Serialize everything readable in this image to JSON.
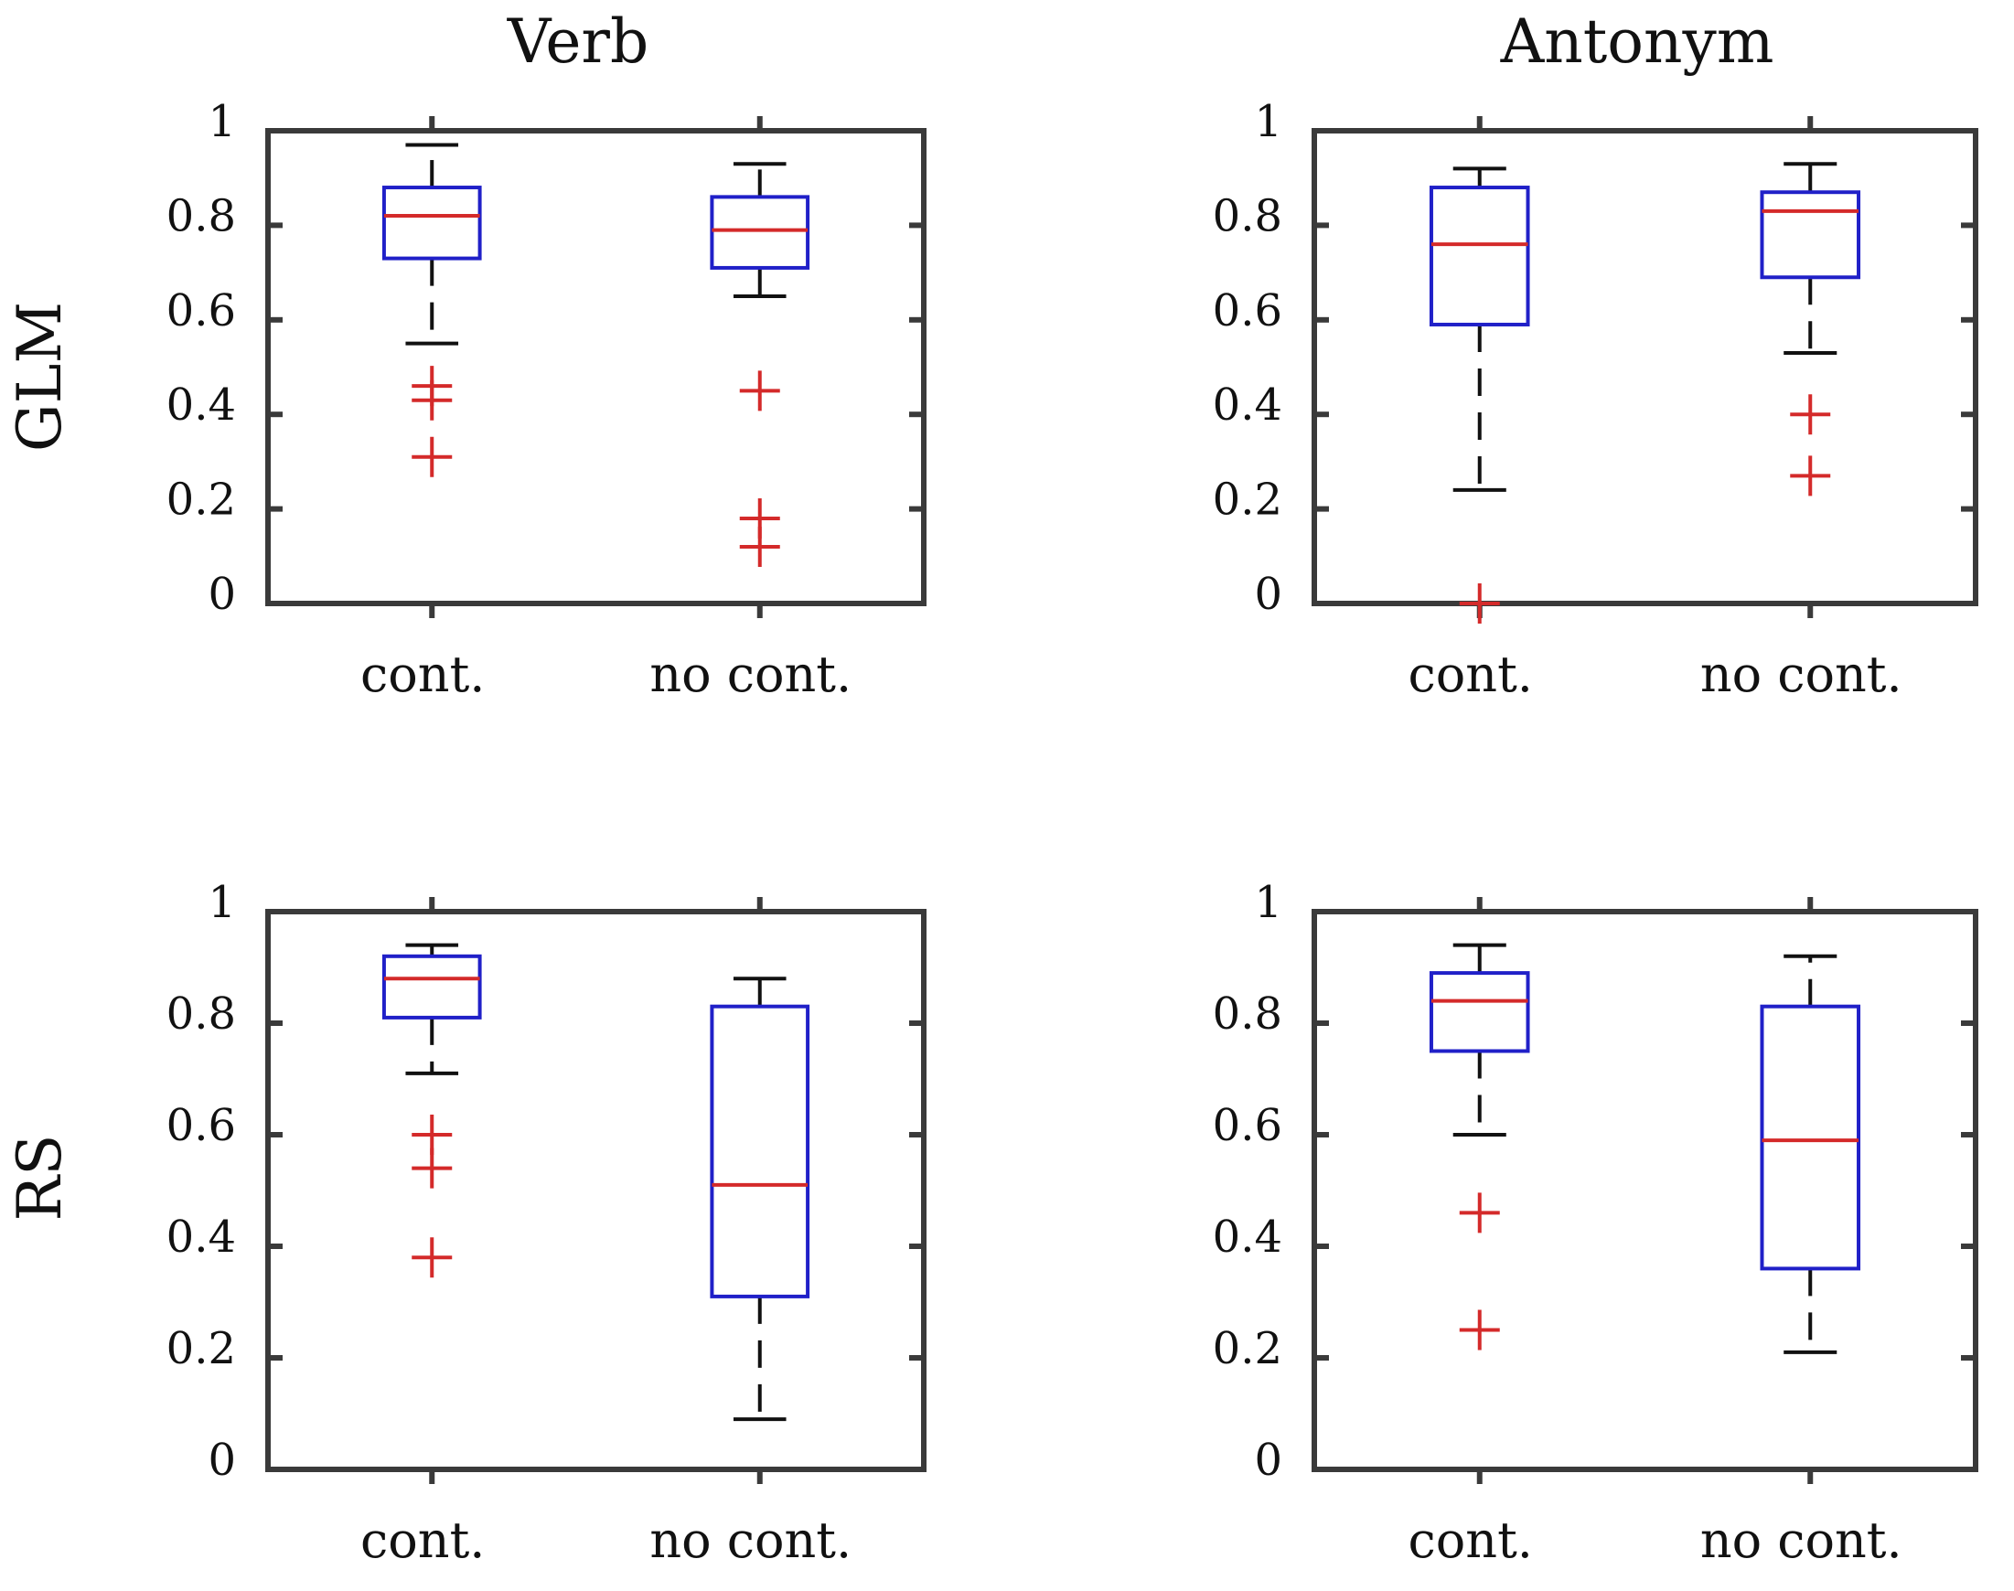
{
  "figure": {
    "col_titles": [
      "Verb",
      "Antonym"
    ],
    "row_labels": [
      "GLM",
      "RS"
    ]
  },
  "chart_data": [
    {
      "type": "box",
      "row": "GLM",
      "column": "Verb",
      "title": "",
      "xlabel": "",
      "ylabel": "",
      "ylim": [
        0,
        1
      ],
      "yticks": [
        "0",
        "0.2",
        "0.4",
        "0.6",
        "0.8",
        "1"
      ],
      "categories": [
        "cont.",
        "no cont."
      ],
      "boxes": [
        {
          "category": "cont.",
          "whisker_low": 0.55,
          "q1": 0.73,
          "median": 0.82,
          "q3": 0.88,
          "whisker_high": 0.97,
          "outliers": [
            0.46,
            0.43,
            0.31
          ]
        },
        {
          "category": "no cont.",
          "whisker_low": 0.65,
          "q1": 0.71,
          "median": 0.79,
          "q3": 0.86,
          "whisker_high": 0.93,
          "outliers": [
            0.45,
            0.18,
            0.12
          ]
        }
      ]
    },
    {
      "type": "box",
      "row": "GLM",
      "column": "Antonym",
      "title": "",
      "xlabel": "",
      "ylabel": "",
      "ylim": [
        0,
        1
      ],
      "yticks": [
        "0",
        "0.2",
        "0.4",
        "0.6",
        "0.8",
        "1"
      ],
      "categories": [
        "cont.",
        "no cont."
      ],
      "boxes": [
        {
          "category": "cont.",
          "whisker_low": 0.24,
          "q1": 0.59,
          "median": 0.76,
          "q3": 0.88,
          "whisker_high": 0.92,
          "outliers": [
            0.0
          ]
        },
        {
          "category": "no cont.",
          "whisker_low": 0.53,
          "q1": 0.69,
          "median": 0.83,
          "q3": 0.87,
          "whisker_high": 0.93,
          "outliers": [
            0.4,
            0.27
          ]
        }
      ]
    },
    {
      "type": "box",
      "row": "RS",
      "column": "Verb",
      "title": "",
      "xlabel": "",
      "ylabel": "",
      "ylim": [
        0,
        1
      ],
      "yticks": [
        "0",
        "0.2",
        "0.4",
        "0.6",
        "0.8",
        "1"
      ],
      "categories": [
        "cont.",
        "no cont."
      ],
      "boxes": [
        {
          "category": "cont.",
          "whisker_low": 0.71,
          "q1": 0.81,
          "median": 0.88,
          "q3": 0.92,
          "whisker_high": 0.94,
          "outliers": [
            0.6,
            0.54,
            0.38
          ]
        },
        {
          "category": "no cont.",
          "whisker_low": 0.09,
          "q1": 0.31,
          "median": 0.51,
          "q3": 0.83,
          "whisker_high": 0.88,
          "outliers": []
        }
      ]
    },
    {
      "type": "box",
      "row": "RS",
      "column": "Antonym",
      "title": "",
      "xlabel": "",
      "ylabel": "",
      "ylim": [
        0,
        1
      ],
      "yticks": [
        "0",
        "0.2",
        "0.4",
        "0.6",
        "0.8",
        "1"
      ],
      "categories": [
        "cont.",
        "no cont."
      ],
      "boxes": [
        {
          "category": "cont.",
          "whisker_low": 0.6,
          "q1": 0.75,
          "median": 0.84,
          "q3": 0.89,
          "whisker_high": 0.94,
          "outliers": [
            0.46,
            0.25
          ]
        },
        {
          "category": "no cont.",
          "whisker_low": 0.21,
          "q1": 0.36,
          "median": 0.59,
          "q3": 0.83,
          "whisker_high": 0.92,
          "outliers": []
        }
      ]
    }
  ],
  "colors": {
    "box": "#2020c8",
    "median": "#d42a2a",
    "outlier": "#d42a2a",
    "whisker": "#111111",
    "axes": "#3a3a3a"
  }
}
